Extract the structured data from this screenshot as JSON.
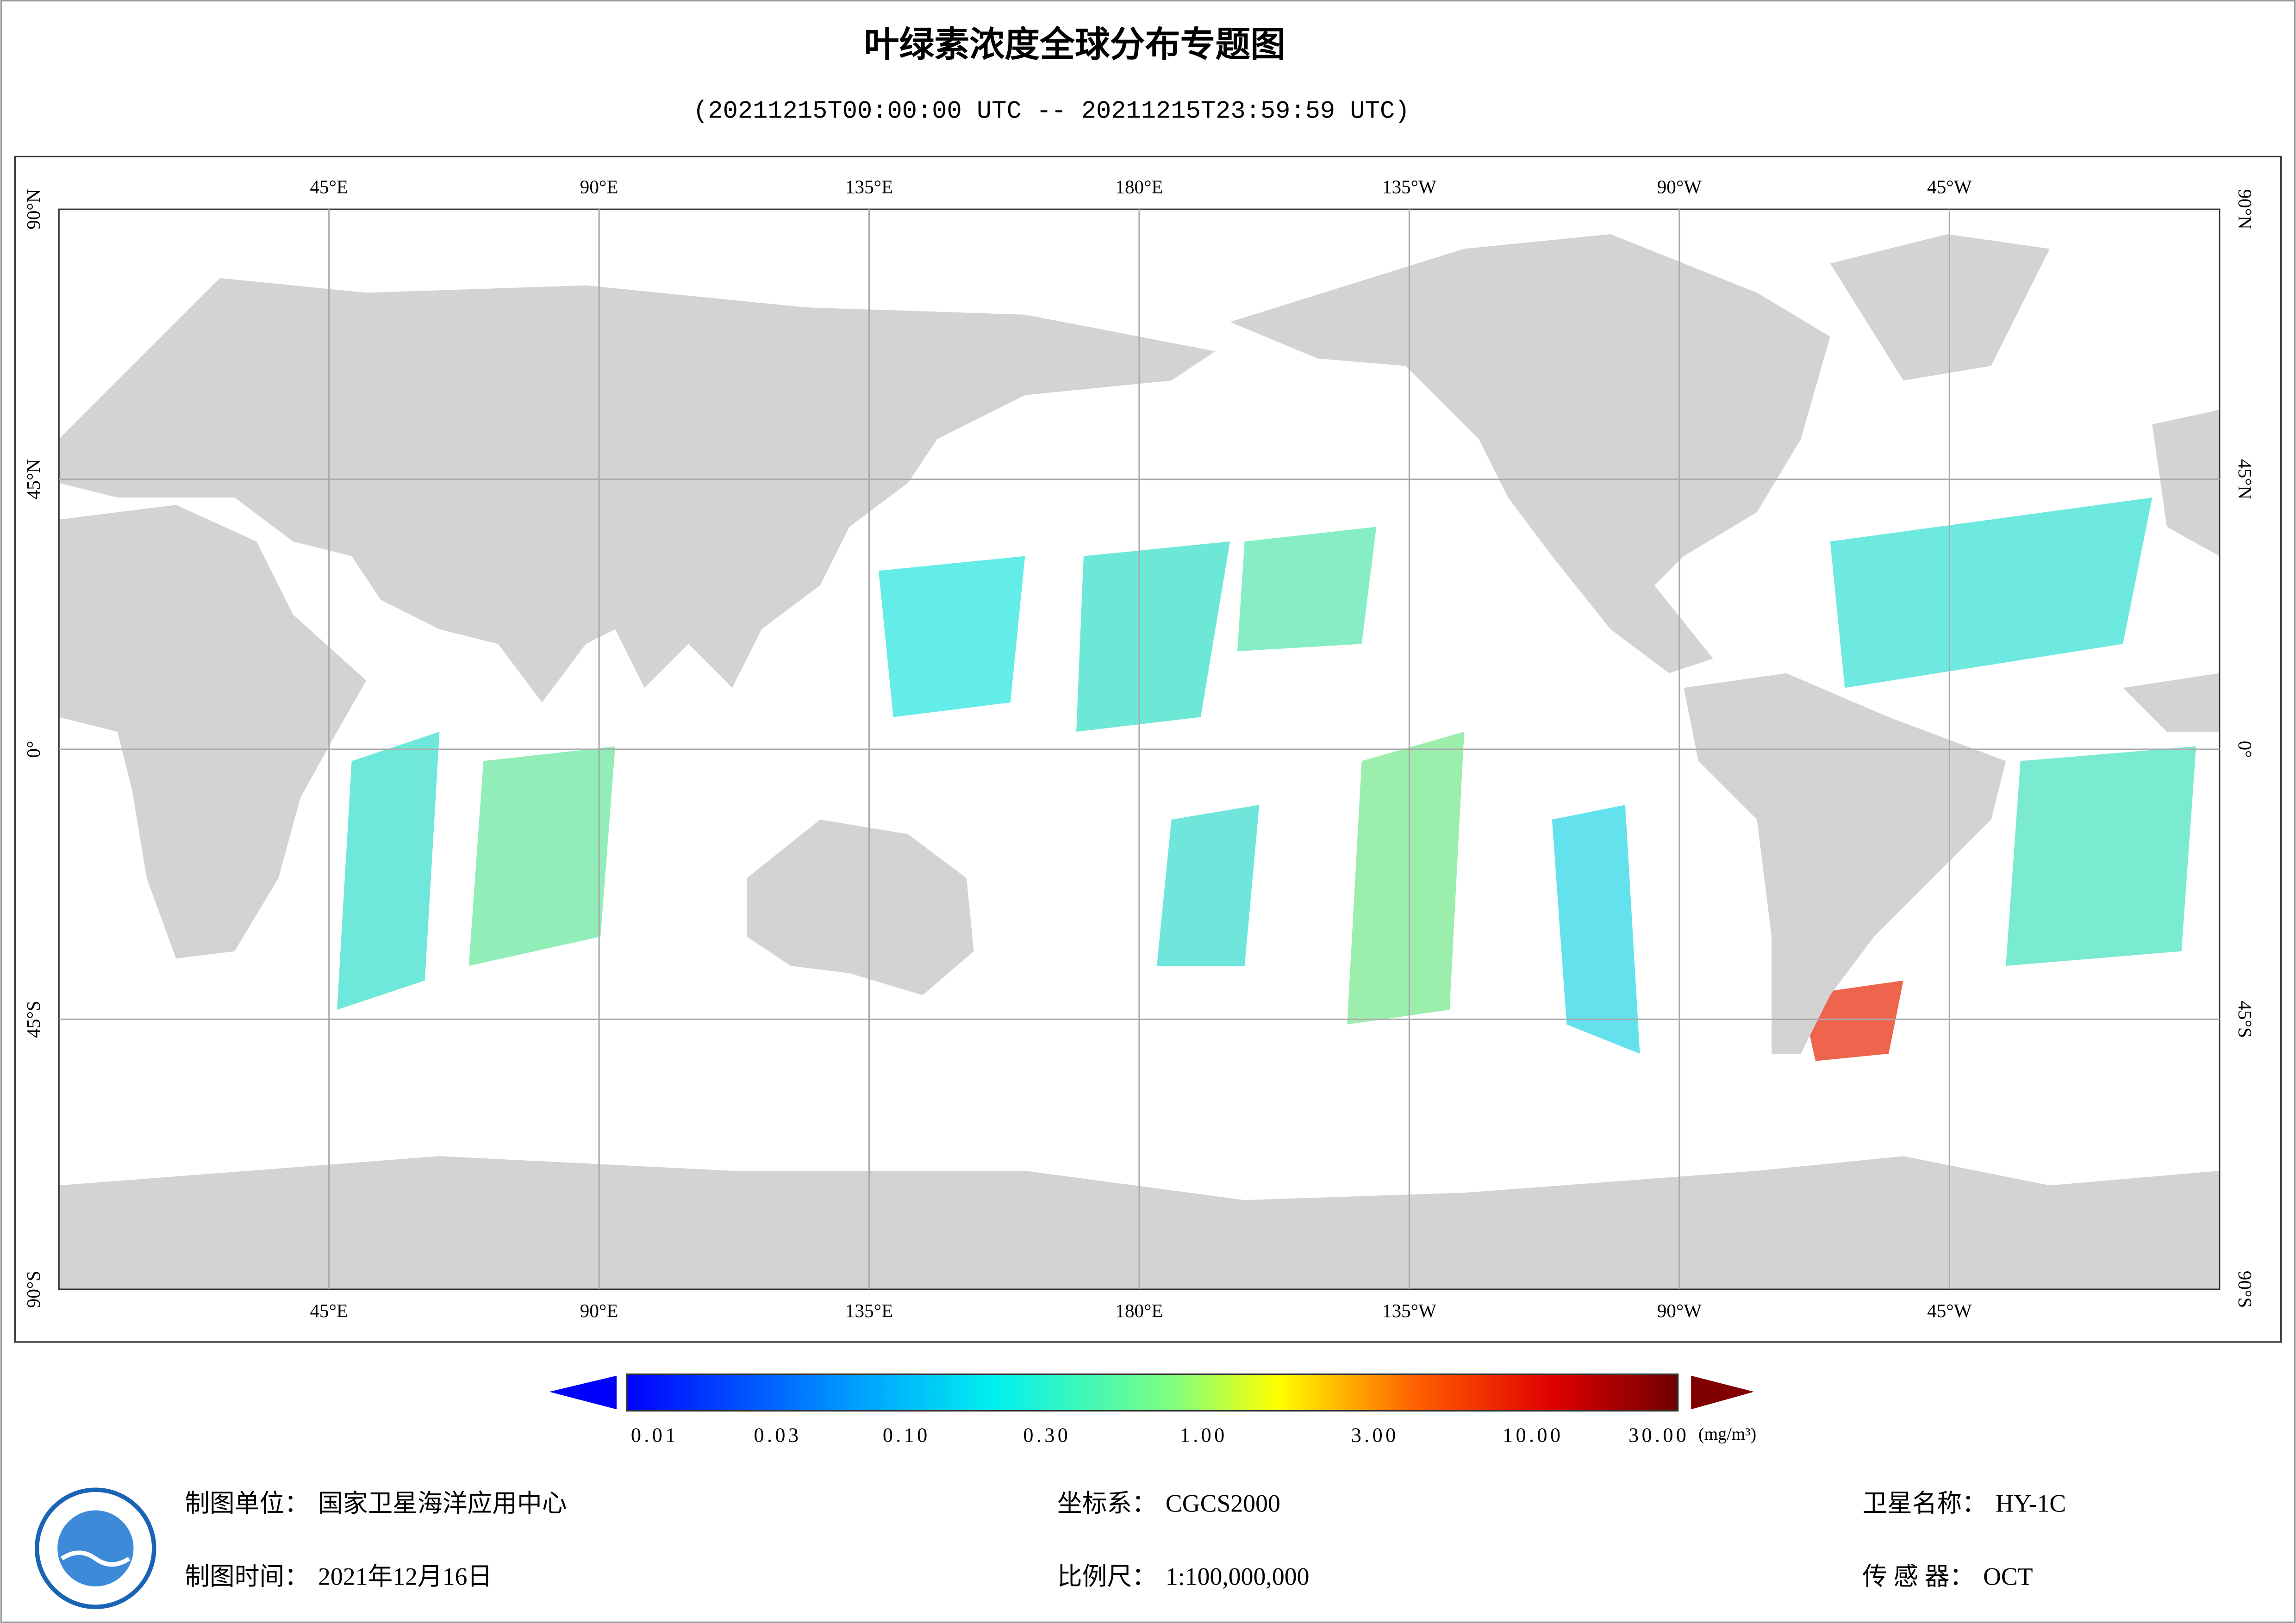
{
  "header": {
    "title": "叶绿素浓度全球分布专题图",
    "subtitle": "(20211215T00:00:00 UTC -- 20211215T23:59:59 UTC)"
  },
  "map": {
    "lon_labels": [
      "45°E",
      "90°E",
      "135°E",
      "180°E",
      "135°W",
      "90°W",
      "45°W"
    ],
    "lat_labels": [
      "90°N",
      "45°N",
      "0°",
      "45°S",
      "90°S"
    ]
  },
  "colorbar": {
    "ticks": [
      "0.01",
      "0.03",
      "0.10",
      "0.30",
      "1.00",
      "3.00",
      "10.00",
      "30.00"
    ],
    "unit": "(mg/m³)"
  },
  "footer": {
    "items": [
      {
        "label": "制图单位：",
        "value": "国家卫星海洋应用中心"
      },
      {
        "label": "坐标系：",
        "value": "CGCS2000"
      },
      {
        "label": "卫星名称：",
        "value": "HY-1C"
      },
      {
        "label": "制图时间：",
        "value": "2021年12月16日"
      },
      {
        "label": "比例尺：",
        "value": "1:100,000,000"
      },
      {
        "label": "传 感 器：",
        "value": "OCT"
      }
    ]
  }
}
